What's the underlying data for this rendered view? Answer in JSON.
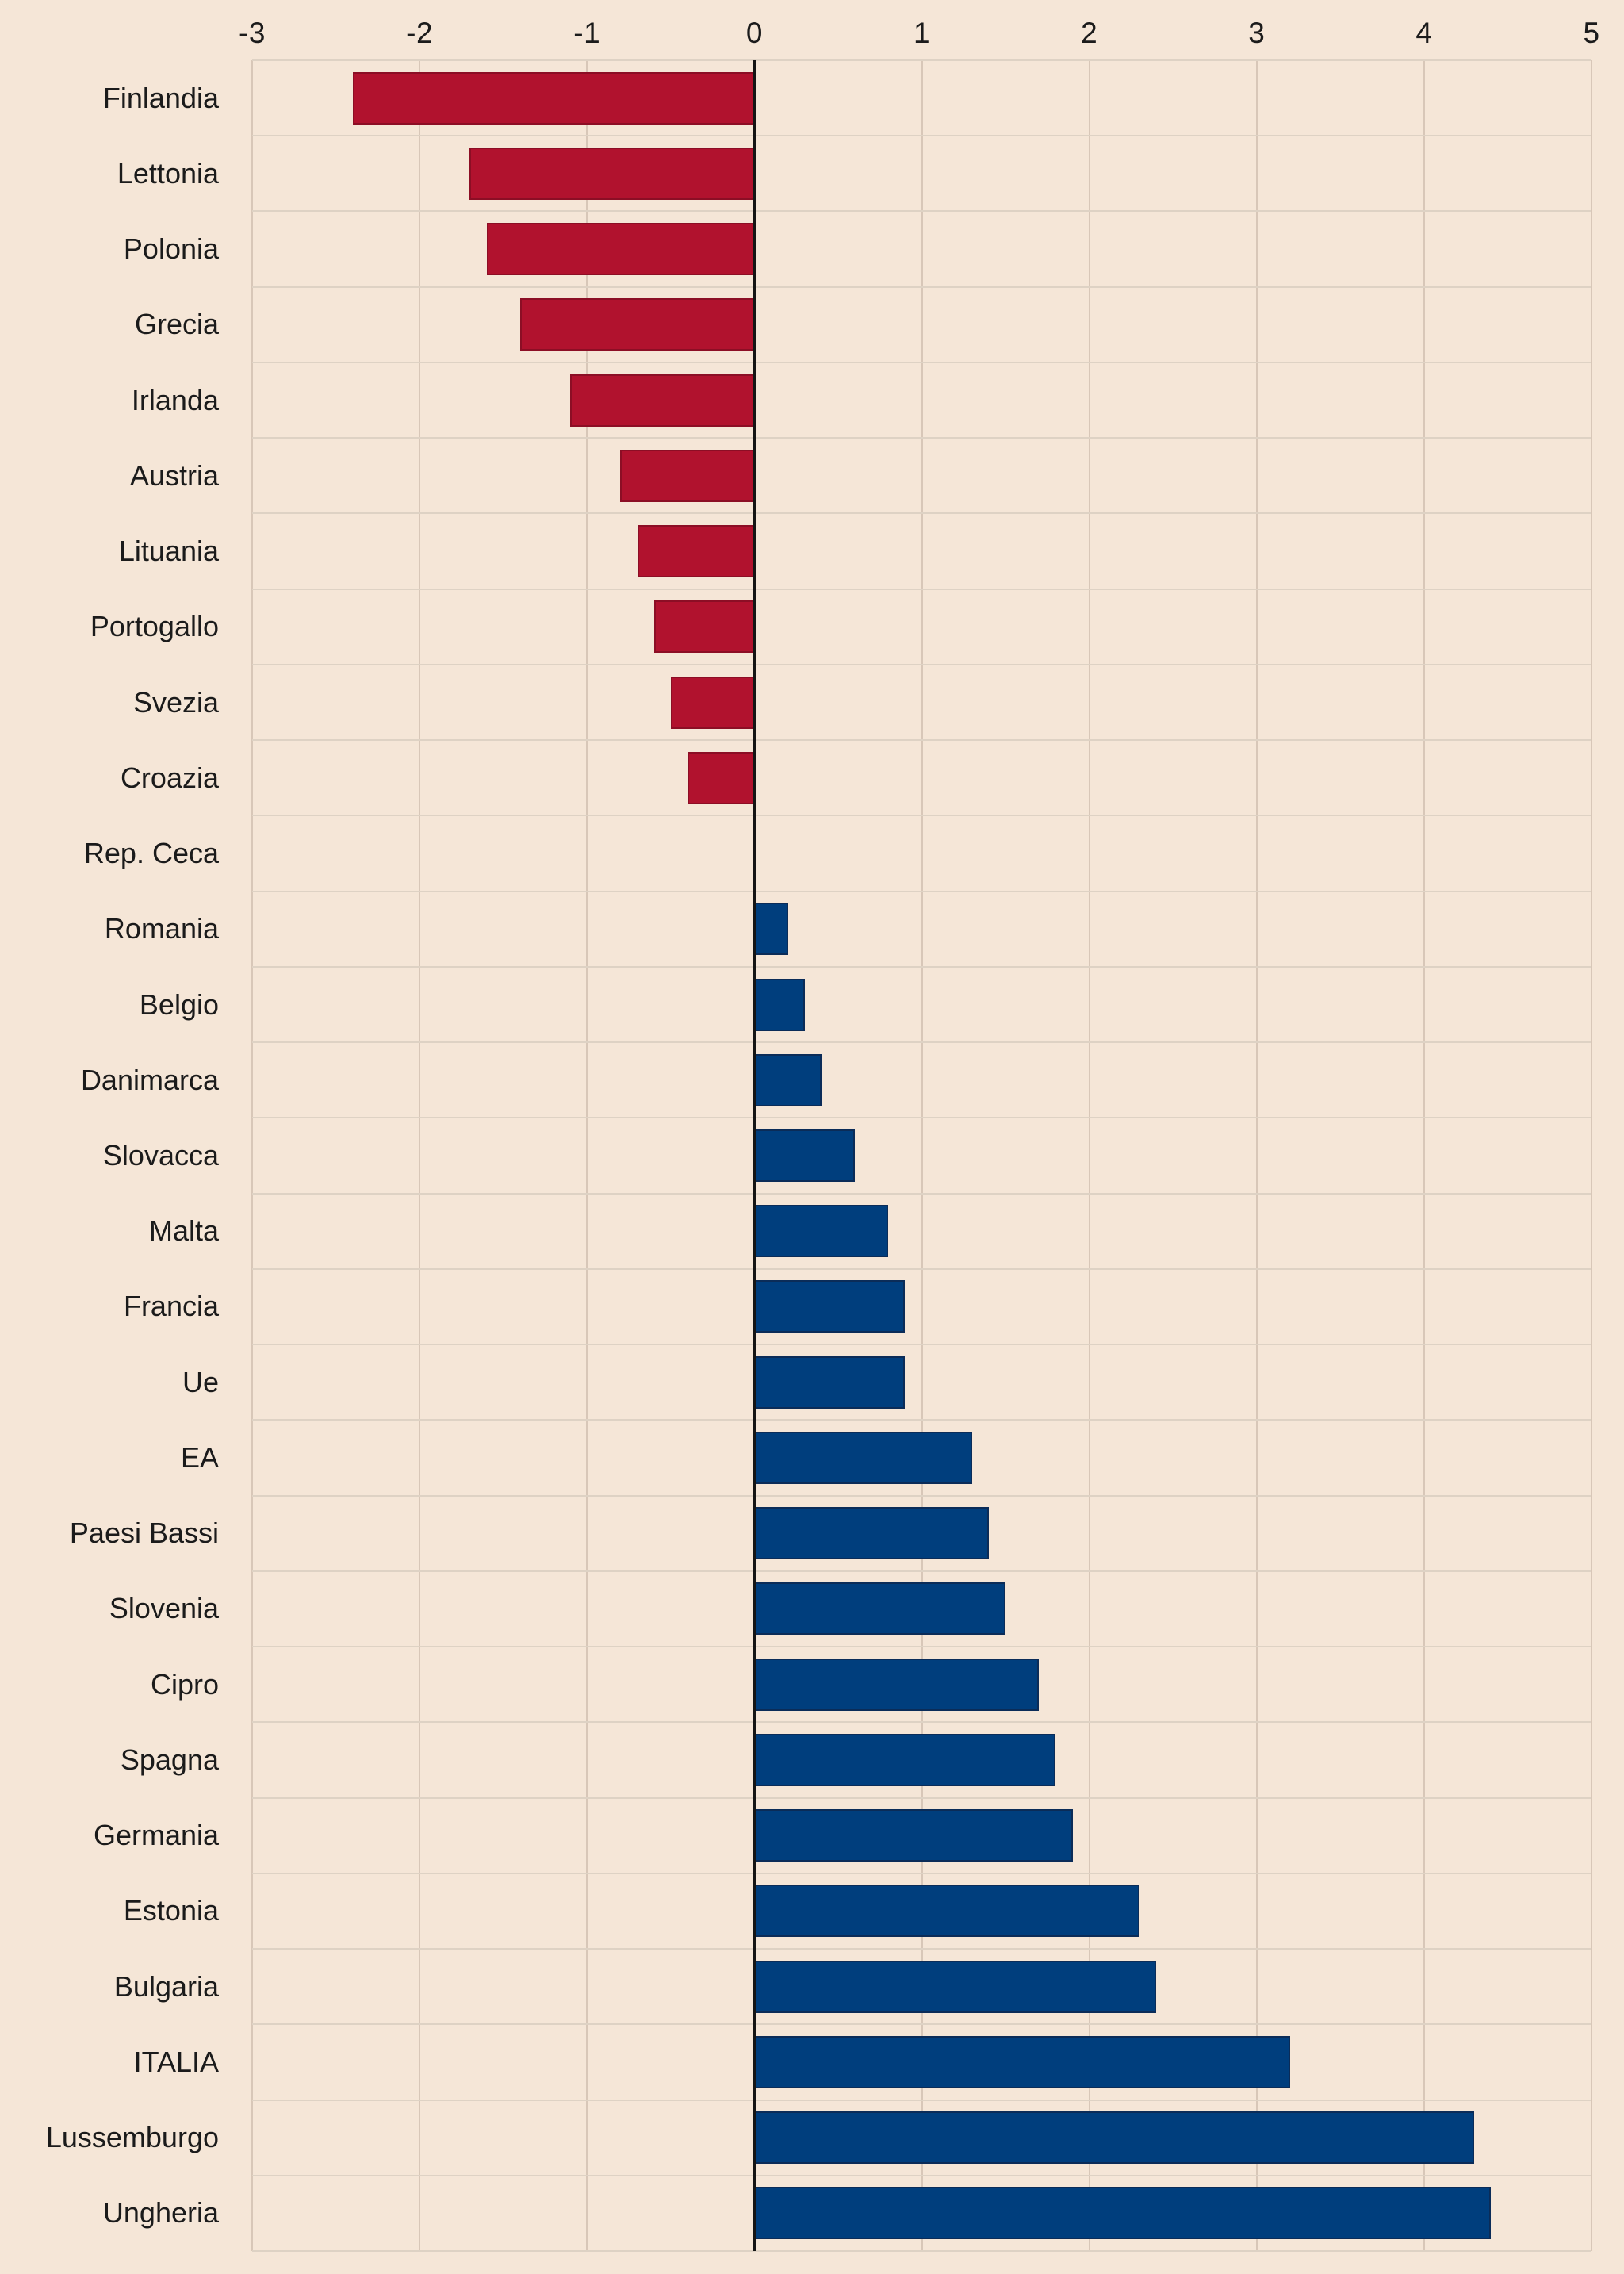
{
  "chart_data": {
    "type": "bar",
    "orientation": "horizontal",
    "title": "",
    "xlabel": "",
    "ylabel": "",
    "categories": [
      "Finlandia",
      "Lettonia",
      "Polonia",
      "Grecia",
      "Irlanda",
      "Austria",
      "Lituania",
      "Portogallo",
      "Svezia",
      "Croazia",
      "Rep. Ceca",
      "Romania",
      "Belgio",
      "Danimarca",
      "Slovacca",
      "Malta",
      "Francia",
      "Ue",
      "EA",
      "Paesi Bassi",
      "Slovenia",
      "Cipro",
      "Spagna",
      "Germania",
      "Estonia",
      "Bulgaria",
      "ITALIA",
      "Lussemburgo",
      "Ungheria"
    ],
    "values": [
      -2.4,
      -1.7,
      -1.6,
      -1.4,
      -1.1,
      -0.8,
      -0.7,
      -0.6,
      -0.5,
      -0.4,
      0.0,
      0.2,
      0.3,
      0.4,
      0.6,
      0.8,
      0.9,
      0.9,
      1.3,
      1.4,
      1.5,
      1.7,
      1.8,
      1.9,
      2.3,
      2.4,
      3.2,
      4.3,
      4.4
    ],
    "xlim": [
      -3,
      5
    ],
    "xticks": [
      "-3",
      "-2",
      "-1",
      "0",
      "1",
      "2",
      "3",
      "4",
      "5"
    ],
    "xtick_values": [
      -3,
      -2,
      -1,
      0,
      1,
      2,
      3,
      4,
      5
    ],
    "grid": true,
    "legend": "none",
    "colors": {
      "negative_fill": "#b1122e",
      "negative_border": "#8c0e25",
      "positive_fill": "#003e7d",
      "positive_border": "#0b2c58",
      "background": "#f5e6d7",
      "vertical_gridline": "#d8c7b8",
      "horizontal_gridline": "#ded2c4",
      "zero_line": "#151515",
      "text": "#1b1b1b"
    }
  }
}
